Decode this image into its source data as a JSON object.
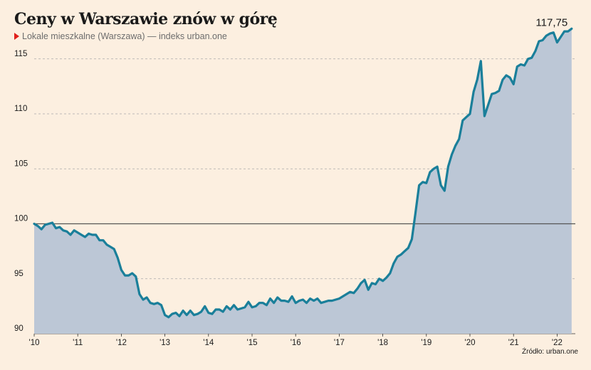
{
  "title": "Ceny w Warszawie znów w górę",
  "subtitle": "Lokale mieszkalne (Warszawa) — indeks urban.one",
  "source": "Źródło: urban.one",
  "last_value_label": "117,75",
  "colors": {
    "background": "#fcefe0",
    "line": "#1a7f9a",
    "area": "#bcc7d6",
    "grid": "#a9a9a9",
    "baseline": "#555555",
    "marker": "#e0201b"
  },
  "chart_data": {
    "type": "area",
    "title": "Ceny w Warszawie znów w górę",
    "series_label": "Lokale mieszkalne (Warszawa) — indeks urban.one",
    "ylim": [
      90,
      118.5
    ],
    "yticks": [
      90,
      95,
      100,
      105,
      110,
      115
    ],
    "reference_line": 100,
    "x_start": "2010-01",
    "x_tick_labels": [
      "'10",
      "'11",
      "'12",
      "'13",
      "'14",
      "'15",
      "'16",
      "'17",
      "'18",
      "'19",
      "'20",
      "'21",
      "'22"
    ],
    "grid": "horizontal dashed",
    "values": [
      100.0,
      99.8,
      99.5,
      99.9,
      100.0,
      100.1,
      99.6,
      99.7,
      99.4,
      99.3,
      99.0,
      99.4,
      99.2,
      99.0,
      98.8,
      99.1,
      99.0,
      99.0,
      98.5,
      98.5,
      98.1,
      97.9,
      97.7,
      96.9,
      95.8,
      95.3,
      95.3,
      95.5,
      95.2,
      93.6,
      93.1,
      93.3,
      92.8,
      92.7,
      92.8,
      92.6,
      91.7,
      91.5,
      91.8,
      91.9,
      91.6,
      92.1,
      91.7,
      92.1,
      91.7,
      91.8,
      92.0,
      92.5,
      91.9,
      91.8,
      92.2,
      92.2,
      92.0,
      92.5,
      92.2,
      92.6,
      92.2,
      92.3,
      92.4,
      92.9,
      92.4,
      92.5,
      92.8,
      92.8,
      92.6,
      93.2,
      92.8,
      93.3,
      93.0,
      93.0,
      92.9,
      93.4,
      92.8,
      93.0,
      93.1,
      92.8,
      93.2,
      93.0,
      93.2,
      92.8,
      92.9,
      93.0,
      93.0,
      93.1,
      93.2,
      93.4,
      93.6,
      93.8,
      93.7,
      94.1,
      94.6,
      94.9,
      94.0,
      94.6,
      94.5,
      95.0,
      94.8,
      95.1,
      95.5,
      96.4,
      97.0,
      97.2,
      97.5,
      97.8,
      98.6,
      101.0,
      103.5,
      103.8,
      103.7,
      104.7,
      105.0,
      105.2,
      103.5,
      103.0,
      105.2,
      106.3,
      107.1,
      107.7,
      109.4,
      109.7,
      110.0,
      112.0,
      113.1,
      114.8,
      109.8,
      110.8,
      111.8,
      111.9,
      112.1,
      113.1,
      113.5,
      113.3,
      112.7,
      114.3,
      114.5,
      114.4,
      115.0,
      115.1,
      115.7,
      116.6,
      116.7,
      117.1,
      117.3,
      117.4,
      116.5,
      117.0,
      117.5,
      117.5,
      117.75
    ]
  }
}
